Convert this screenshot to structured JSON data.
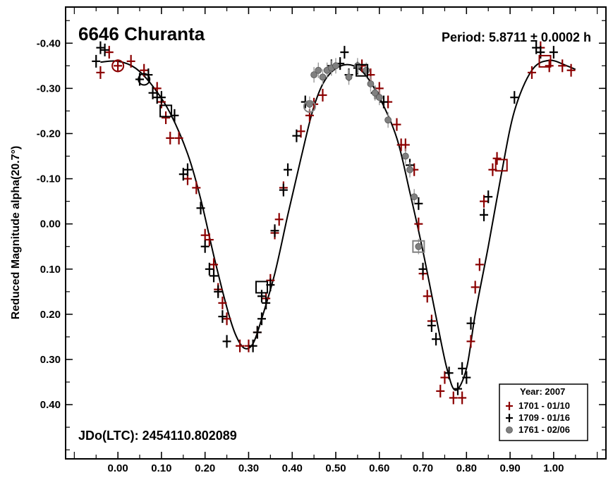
{
  "chart_data": {
    "type": "scatter",
    "title": "6646 Churanta",
    "period_label": "Period: 5.8711 ± 0.0002 h",
    "epoch_label": "JDo(LTC): 2454110.802089",
    "xlabel": "",
    "ylabel": "Reduced Magnitude alpha(20.7°)",
    "xlim": [
      -0.12,
      1.12
    ],
    "ylim": [
      -0.48,
      0.52
    ],
    "y_inverted": true,
    "grid": false,
    "legend_position": "bottom-right",
    "xticks": [
      "0.00",
      "0.10",
      "0.20",
      "0.30",
      "0.40",
      "0.50",
      "0.60",
      "0.70",
      "0.80",
      "0.90",
      "1.00"
    ],
    "yticks": [
      "-0.40",
      "-0.30",
      "-0.20",
      "-0.10",
      "0.00",
      "0.10",
      "0.20",
      "0.30",
      "0.40"
    ],
    "legend": {
      "title": "Year: 2007",
      "entries": [
        "1701 - 01/10",
        "1709 - 01/16",
        "1761 - 02/06"
      ]
    },
    "colors": {
      "s1701": "#8b0000",
      "s1709": "#000000",
      "s1761": "#808080"
    },
    "fit_curve": [
      [
        -0.04,
        -0.358
      ],
      [
        0.0,
        -0.36
      ],
      [
        0.04,
        -0.345
      ],
      [
        0.08,
        -0.305
      ],
      [
        0.12,
        -0.245
      ],
      [
        0.16,
        -0.155
      ],
      [
        0.19,
        -0.055
      ],
      [
        0.22,
        0.07
      ],
      [
        0.25,
        0.185
      ],
      [
        0.27,
        0.245
      ],
      [
        0.29,
        0.275
      ],
      [
        0.31,
        0.265
      ],
      [
        0.33,
        0.21
      ],
      [
        0.36,
        0.11
      ],
      [
        0.39,
        -0.02
      ],
      [
        0.42,
        -0.145
      ],
      [
        0.45,
        -0.26
      ],
      [
        0.48,
        -0.325
      ],
      [
        0.52,
        -0.352
      ],
      [
        0.56,
        -0.338
      ],
      [
        0.6,
        -0.28
      ],
      [
        0.64,
        -0.19
      ],
      [
        0.67,
        -0.07
      ],
      [
        0.7,
        0.06
      ],
      [
        0.73,
        0.205
      ],
      [
        0.755,
        0.32
      ],
      [
        0.775,
        0.368
      ],
      [
        0.8,
        0.32
      ],
      [
        0.82,
        0.2
      ],
      [
        0.85,
        0.05
      ],
      [
        0.88,
        -0.11
      ],
      [
        0.91,
        -0.25
      ],
      [
        0.95,
        -0.34
      ],
      [
        0.99,
        -0.362
      ],
      [
        1.03,
        -0.35
      ],
      [
        1.05,
        -0.342
      ]
    ],
    "series": [
      {
        "name": "1701 - 01/10",
        "marker": "plus",
        "points": [
          [
            -0.04,
            -0.335
          ],
          [
            -0.02,
            -0.38
          ],
          [
            0.0,
            -0.35
          ],
          [
            0.03,
            -0.36
          ],
          [
            0.06,
            -0.34
          ],
          [
            0.09,
            -0.3
          ],
          [
            0.1,
            -0.27
          ],
          [
            0.11,
            -0.235
          ],
          [
            0.12,
            -0.19
          ],
          [
            0.14,
            -0.19
          ],
          [
            0.16,
            -0.1
          ],
          [
            0.18,
            -0.08
          ],
          [
            0.2,
            0.025
          ],
          [
            0.21,
            0.035
          ],
          [
            0.22,
            0.09
          ],
          [
            0.23,
            0.145
          ],
          [
            0.24,
            0.175
          ],
          [
            0.25,
            0.21
          ],
          [
            0.28,
            0.27
          ],
          [
            0.3,
            0.27
          ],
          [
            0.32,
            0.24
          ],
          [
            0.34,
            0.165
          ],
          [
            0.35,
            0.125
          ],
          [
            0.36,
            0.02
          ],
          [
            0.37,
            -0.01
          ],
          [
            0.38,
            -0.08
          ],
          [
            0.42,
            -0.205
          ],
          [
            0.44,
            -0.24
          ],
          [
            0.45,
            -0.265
          ],
          [
            0.47,
            -0.285
          ],
          [
            0.56,
            -0.35
          ],
          [
            0.58,
            -0.33
          ],
          [
            0.6,
            -0.3
          ],
          [
            0.62,
            -0.27
          ],
          [
            0.64,
            -0.22
          ],
          [
            0.65,
            -0.175
          ],
          [
            0.66,
            -0.175
          ],
          [
            0.68,
            -0.12
          ],
          [
            0.69,
            0.0
          ],
          [
            0.7,
            0.11
          ],
          [
            0.71,
            0.16
          ],
          [
            0.72,
            0.215
          ],
          [
            0.74,
            0.37
          ],
          [
            0.75,
            0.34
          ],
          [
            0.77,
            0.385
          ],
          [
            0.79,
            0.385
          ],
          [
            0.81,
            0.26
          ],
          [
            0.82,
            0.14
          ],
          [
            0.83,
            0.09
          ],
          [
            0.84,
            -0.05
          ],
          [
            0.86,
            -0.12
          ],
          [
            0.87,
            -0.145
          ],
          [
            0.95,
            -0.335
          ],
          [
            0.97,
            -0.39
          ],
          [
            0.99,
            -0.35
          ],
          [
            1.02,
            -0.35
          ],
          [
            1.04,
            -0.34
          ]
        ]
      },
      {
        "name": "1709 - 01/16",
        "marker": "plus",
        "points": [
          [
            -0.05,
            -0.36
          ],
          [
            -0.04,
            -0.39
          ],
          [
            -0.03,
            -0.385
          ],
          [
            0.05,
            -0.32
          ],
          [
            0.07,
            -0.33
          ],
          [
            0.08,
            -0.29
          ],
          [
            0.09,
            -0.28
          ],
          [
            0.1,
            -0.28
          ],
          [
            0.13,
            -0.24
          ],
          [
            0.15,
            -0.11
          ],
          [
            0.16,
            -0.12
          ],
          [
            0.19,
            -0.035
          ],
          [
            0.2,
            0.05
          ],
          [
            0.21,
            0.1
          ],
          [
            0.22,
            0.115
          ],
          [
            0.23,
            0.15
          ],
          [
            0.24,
            0.205
          ],
          [
            0.25,
            0.26
          ],
          [
            0.31,
            0.27
          ],
          [
            0.32,
            0.24
          ],
          [
            0.33,
            0.21
          ],
          [
            0.33,
            0.16
          ],
          [
            0.34,
            0.175
          ],
          [
            0.35,
            0.135
          ],
          [
            0.36,
            0.015
          ],
          [
            0.38,
            -0.075
          ],
          [
            0.39,
            -0.12
          ],
          [
            0.41,
            -0.195
          ],
          [
            0.43,
            -0.27
          ],
          [
            0.49,
            -0.35
          ],
          [
            0.51,
            -0.355
          ],
          [
            0.52,
            -0.38
          ],
          [
            0.53,
            -0.33
          ],
          [
            0.55,
            -0.345
          ],
          [
            0.59,
            -0.29
          ],
          [
            0.61,
            -0.27
          ],
          [
            0.67,
            -0.13
          ],
          [
            0.69,
            -0.045
          ],
          [
            0.7,
            0.1
          ],
          [
            0.72,
            0.225
          ],
          [
            0.73,
            0.255
          ],
          [
            0.76,
            0.33
          ],
          [
            0.78,
            0.365
          ],
          [
            0.79,
            0.32
          ],
          [
            0.8,
            0.34
          ],
          [
            0.81,
            0.22
          ],
          [
            0.84,
            -0.02
          ],
          [
            0.85,
            -0.06
          ],
          [
            0.91,
            -0.28
          ],
          [
            0.96,
            -0.39
          ],
          [
            0.97,
            -0.38
          ],
          [
            1.0,
            -0.38
          ]
        ]
      },
      {
        "name": "1761 - 02/06",
        "marker": "circle",
        "points": [
          [
            0.44,
            -0.265
          ],
          [
            0.45,
            -0.33
          ],
          [
            0.46,
            -0.34
          ],
          [
            0.47,
            -0.325
          ],
          [
            0.48,
            -0.34
          ],
          [
            0.49,
            -0.345
          ],
          [
            0.5,
            -0.35
          ],
          [
            0.53,
            -0.325
          ],
          [
            0.55,
            -0.35
          ],
          [
            0.57,
            -0.34
          ],
          [
            0.58,
            -0.31
          ],
          [
            0.59,
            -0.29
          ],
          [
            0.6,
            -0.28
          ],
          [
            0.62,
            -0.23
          ],
          [
            0.66,
            -0.15
          ],
          [
            0.67,
            -0.12
          ],
          [
            0.68,
            -0.06
          ],
          [
            0.69,
            0.05
          ]
        ]
      }
    ],
    "highlight_markers": [
      {
        "series": "1701 - 01/10",
        "shape": "circle",
        "x": 0.0,
        "y": -0.35
      },
      {
        "series": "1709 - 01/16",
        "shape": "circle",
        "x": 0.06,
        "y": -0.32
      },
      {
        "series": "1709 - 01/16",
        "shape": "square",
        "x": 0.11,
        "y": -0.25
      },
      {
        "series": "1709 - 01/16",
        "shape": "square",
        "x": 0.33,
        "y": 0.14
      },
      {
        "series": "1761 - 02/06",
        "shape": "circle",
        "x": 0.44,
        "y": -0.26
      },
      {
        "series": "1761 - 02/06",
        "shape": "square",
        "x": 0.69,
        "y": 0.05
      },
      {
        "series": "1709 - 01/16",
        "shape": "square",
        "x": 0.56,
        "y": -0.34
      },
      {
        "series": "1701 - 01/10",
        "shape": "square",
        "x": 0.98,
        "y": -0.36
      },
      {
        "series": "1701 - 01/10",
        "shape": "square",
        "x": 0.88,
        "y": -0.13
      }
    ]
  }
}
